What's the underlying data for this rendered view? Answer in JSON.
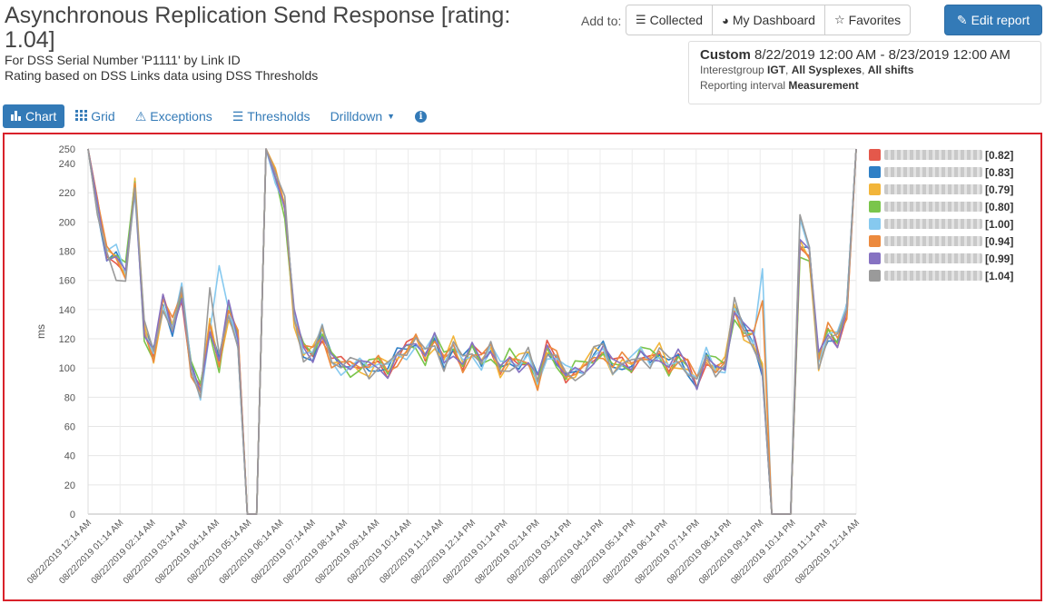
{
  "header": {
    "title": "Asynchronous Replication Send Response [rating: 1.04]",
    "subtitle_1": "For DSS Serial Number  'P1111' by Link ID",
    "subtitle_2": "Rating based on DSS Links data using DSS Thresholds"
  },
  "toolbar": {
    "add_to_label": "Add to:",
    "collected_label": "Collected",
    "dashboard_label": "My Dashboard",
    "favorites_label": "Favorites",
    "edit_label": "Edit report"
  },
  "range": {
    "preset": "Custom",
    "dates": "8/22/2019 12:00 AM - 8/23/2019 12:00 AM",
    "interest_prefix": "Interestgroup ",
    "interest_group": "IGT",
    "sysplexes": "All Sysplexes",
    "shifts": "All shifts",
    "interval_prefix": "Reporting interval ",
    "interval": "Measurement"
  },
  "tabs": {
    "chart": "Chart",
    "grid": "Grid",
    "exceptions": "Exceptions",
    "thresholds": "Thresholds",
    "drilldown": "Drilldown"
  },
  "icons": {
    "chart": "bar-chart-icon",
    "grid": "grid-icon",
    "exceptions": "warning-icon",
    "thresholds": "list-icon",
    "drilldown": "caret-down-icon",
    "info": "info-icon",
    "collected": "list-icon",
    "dashboard": "dashboard-icon",
    "favorites": "star-icon",
    "edit": "edit-icon"
  },
  "colors": {
    "accent": "#337ab7",
    "frame": "#d9212a"
  },
  "chart_data": {
    "type": "line",
    "ylabel": "ms",
    "ylim": [
      0,
      250
    ],
    "yticks": [
      0,
      20,
      40,
      60,
      80,
      100,
      120,
      140,
      160,
      180,
      200,
      220,
      240,
      250
    ],
    "xtick_labels": [
      "08/22/2019 12:14 AM",
      "08/22/2019 01:14 AM",
      "08/22/2019 02:14 AM",
      "08/22/2019 03:14 AM",
      "08/22/2019 04:14 AM",
      "08/22/2019 05:14 AM",
      "08/22/2019 06:14 AM",
      "08/22/2019 07:14 AM",
      "08/22/2019 08:14 AM",
      "08/22/2019 09:14 AM",
      "08/22/2019 10:14 AM",
      "08/22/2019 11:14 AM",
      "08/22/2019 12:14 PM",
      "08/22/2019 01:14 PM",
      "08/22/2019 02:14 PM",
      "08/22/2019 03:14 PM",
      "08/22/2019 04:14 PM",
      "08/22/2019 05:14 PM",
      "08/22/2019 06:14 PM",
      "08/22/2019 07:14 PM",
      "08/22/2019 08:14 PM",
      "08/22/2019 09:14 PM",
      "08/22/2019 10:14 PM",
      "08/22/2019 11:14 PM",
      "08/23/2019 12:14 AM"
    ],
    "grid": true,
    "legend_position": "right",
    "base": [
      250,
      210,
      178,
      178,
      165,
      225,
      125,
      108,
      145,
      128,
      152,
      100,
      84,
      128,
      103,
      140,
      120,
      0,
      0,
      250,
      232,
      210,
      135,
      112,
      110,
      125,
      106,
      102,
      101,
      102,
      100,
      104,
      99,
      108,
      112,
      118,
      108,
      120,
      105,
      115,
      103,
      112,
      104,
      113,
      99,
      106,
      103,
      107,
      90,
      112,
      106,
      95,
      98,
      100,
      108,
      112,
      100,
      104,
      102,
      110,
      106,
      110,
      100,
      106,
      100,
      90,
      108,
      100,
      102,
      140,
      125,
      120,
      100,
      0,
      0,
      0,
      182,
      178,
      105,
      125,
      120,
      140,
      250
    ],
    "series": [
      {
        "name": "████████P11",
        "rating": "[0.82]",
        "color": "#e4584b",
        "noise": 0,
        "amp": 1.0,
        "spikes": []
      },
      {
        "name": "████████P19",
        "rating": "[0.83]",
        "color": "#2f80c6",
        "noise": 1,
        "amp": 0.9,
        "spikes": []
      },
      {
        "name": "1████████20",
        "rating": "[0.79]",
        "color": "#f2b53a",
        "noise": 2,
        "amp": 1.1,
        "spikes": []
      },
      {
        "name": "1████████21",
        "rating": "[0.80]",
        "color": "#7ac54b",
        "noise": 3,
        "amp": 1.2,
        "spikes": []
      },
      {
        "name": "██████P38",
        "rating": "[1.00]",
        "color": "#86c9ef",
        "noise": 4,
        "amp": 1.0,
        "spikes": [
          {
            "i": 14,
            "v": 170
          },
          {
            "i": 72,
            "v": 168
          },
          {
            "i": 76,
            "v": 202
          }
        ]
      },
      {
        "name": "1█████D1_00_P33",
        "rating": "[0.94]",
        "color": "#ec8a3e",
        "noise": 5,
        "amp": 1.0,
        "spikes": [
          {
            "i": 72,
            "v": 146
          }
        ]
      },
      {
        "name": "1████████P0",
        "rating": "[0.99]",
        "color": "#8672c2",
        "noise": 6,
        "amp": 1.0,
        "spikes": [
          {
            "i": 76,
            "v": 188
          }
        ]
      },
      {
        "name": "1█████D1_00_P31",
        "rating": "[1.04]",
        "color": "#9a9a9a",
        "noise": 7,
        "amp": 1.3,
        "spikes": [
          {
            "i": 3,
            "v": 160
          },
          {
            "i": 13,
            "v": 155
          },
          {
            "i": 76,
            "v": 205
          }
        ]
      }
    ]
  }
}
